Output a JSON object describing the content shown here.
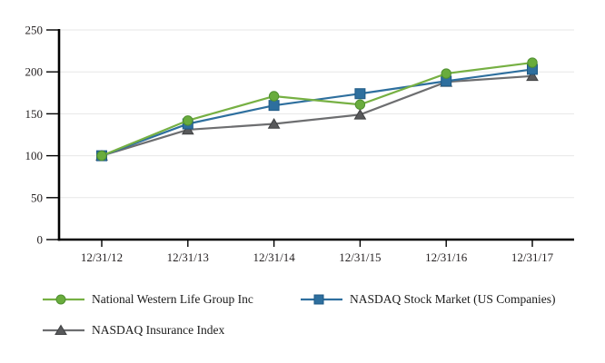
{
  "chart_data": {
    "type": "line",
    "title": "",
    "xlabel": "",
    "ylabel": "",
    "x_labels": [
      "12/31/12",
      "12/31/13",
      "12/31/14",
      "12/31/15",
      "12/31/16",
      "12/31/17"
    ],
    "y_ticks": [
      0,
      50,
      100,
      150,
      200,
      250
    ],
    "ylim": [
      0,
      250
    ],
    "grid": "horizontal",
    "legend_position": "bottom-left-two-rows",
    "axis_color": "#000000",
    "gridline_color": "#e7e7e7",
    "text_color": "#231f20",
    "series": [
      {
        "name": "National Western Life Group Inc",
        "marker": "circle",
        "color": "#76b043",
        "marker_color": "#69ac3d",
        "marker_edge": "#4e8f2f",
        "values": [
          100,
          142,
          171,
          161,
          198,
          211
        ]
      },
      {
        "name": "NASDAQ Stock Market (US Companies)",
        "marker": "square",
        "color": "#2e6f9e",
        "marker_color": "#2e6f9e",
        "marker_edge": "#1f5a85",
        "values": [
          100,
          138,
          160,
          174,
          189,
          203
        ]
      },
      {
        "name": "NASDAQ Insurance Index",
        "marker": "triangle",
        "color": "#6d6e70",
        "marker_color": "#58595b",
        "marker_edge": "#3f4042",
        "values": [
          100,
          131,
          138,
          149,
          188,
          195
        ]
      }
    ]
  }
}
